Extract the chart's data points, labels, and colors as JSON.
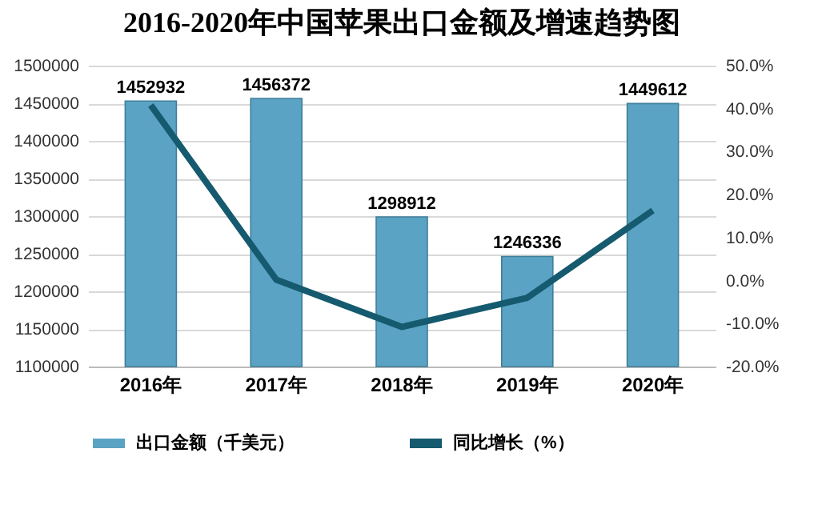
{
  "chart_data": {
    "type": "bar",
    "title": "2016-2020年中国苹果出口金额及增速趋势图",
    "categories": [
      "2016年",
      "2017年",
      "2018年",
      "2019年",
      "2020年"
    ],
    "series": [
      {
        "name": "出口金额（千美元）",
        "color": "#5ba3c4",
        "values": [
          1452932,
          1456372,
          1298912,
          1246336,
          1449612
        ],
        "value_labels": [
          "1452932",
          "1456372",
          "1298912",
          "1246336",
          "1449612"
        ]
      },
      {
        "name": "同比增长（%）",
        "type": "line",
        "axis": "y2",
        "color": "#155a6e",
        "values": [
          40.8,
          0.2,
          -10.8,
          -4.0,
          16.3
        ]
      }
    ],
    "ylim": [
      1100000,
      1500000
    ],
    "yticks": [
      1100000,
      1150000,
      1200000,
      1250000,
      1300000,
      1350000,
      1400000,
      1450000,
      1500000
    ],
    "y2lim": [
      -20,
      50
    ],
    "y2ticks": [
      {
        "value": -20,
        "label": "-20.0%"
      },
      {
        "value": -10,
        "label": "-10.0%"
      },
      {
        "value": 0,
        "label": "0.0%"
      },
      {
        "value": 10,
        "label": "10.0%"
      },
      {
        "value": 20,
        "label": "20.0%"
      },
      {
        "value": 30,
        "label": "30.0%"
      },
      {
        "value": 40,
        "label": "40.0%"
      },
      {
        "value": 50,
        "label": "50.0%"
      }
    ],
    "grid": "y",
    "legend": "bottom",
    "marker": "none",
    "line_style": "solid"
  }
}
